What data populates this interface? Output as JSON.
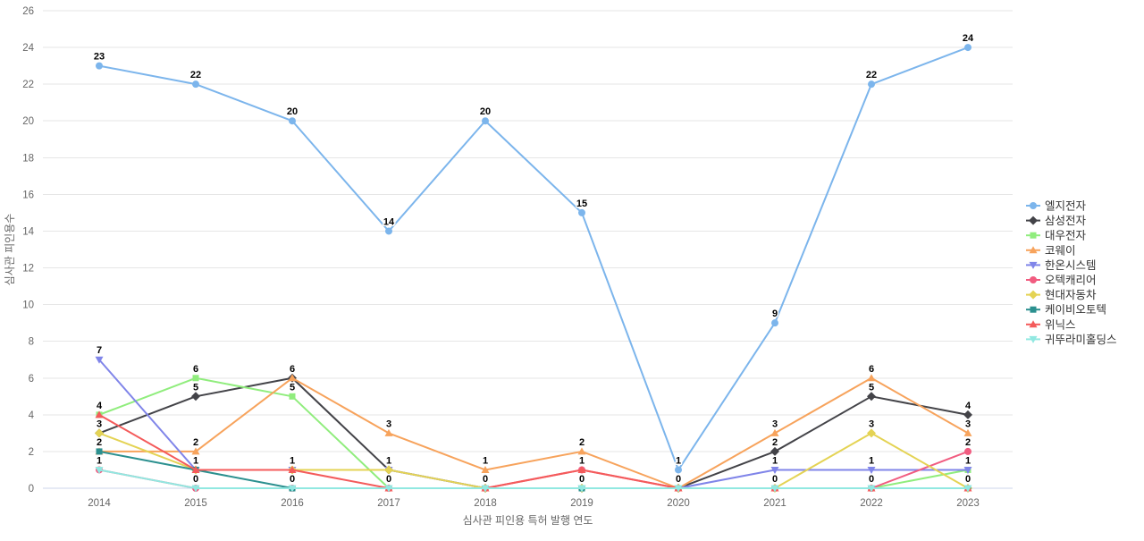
{
  "chart_data": {
    "type": "line",
    "x": [
      "2014",
      "2015",
      "2016",
      "2017",
      "2018",
      "2019",
      "2020",
      "2021",
      "2022",
      "2023"
    ],
    "xlabel": "심사관 피인용 특허 발행 연도",
    "ylabel": "심사관 피인용수",
    "ylim": [
      0,
      26
    ],
    "ytick_step": 2,
    "grid": true,
    "legend_position": "right",
    "data_labels": true,
    "series": [
      {
        "name": "엘지전자",
        "color": "#7cb5ec",
        "marker": "circle",
        "values": [
          23,
          22,
          20,
          14,
          20,
          15,
          1,
          9,
          22,
          24
        ]
      },
      {
        "name": "삼성전자",
        "color": "#434348",
        "marker": "diamond",
        "values": [
          3,
          5,
          6,
          1,
          0,
          0,
          0,
          2,
          5,
          4
        ]
      },
      {
        "name": "대우전자",
        "color": "#90ed7d",
        "marker": "square",
        "values": [
          4,
          6,
          5,
          0,
          0,
          0,
          0,
          0,
          0,
          1
        ]
      },
      {
        "name": "코웨이",
        "color": "#f7a35c",
        "marker": "triangle",
        "values": [
          2,
          2,
          6,
          3,
          1,
          2,
          0,
          3,
          6,
          3
        ]
      },
      {
        "name": "한온시스템",
        "color": "#8085e9",
        "marker": "triangle-down",
        "values": [
          7,
          1,
          1,
          1,
          0,
          0,
          0,
          1,
          1,
          1
        ]
      },
      {
        "name": "오텍캐리어",
        "color": "#f15c80",
        "marker": "circle",
        "values": [
          1,
          0,
          0,
          0,
          0,
          1,
          0,
          0,
          0,
          2
        ]
      },
      {
        "name": "현대자동차",
        "color": "#e4d354",
        "marker": "diamond",
        "values": [
          3,
          1,
          1,
          1,
          0,
          0,
          0,
          0,
          3,
          0
        ]
      },
      {
        "name": "케이비오토텍",
        "color": "#2b908f",
        "marker": "square",
        "values": [
          2,
          1,
          0,
          0,
          0,
          0,
          0,
          0,
          0,
          0
        ]
      },
      {
        "name": "위닉스",
        "color": "#f45b5b",
        "marker": "triangle",
        "values": [
          4,
          1,
          1,
          0,
          0,
          1,
          0,
          0,
          0,
          0
        ]
      },
      {
        "name": "귀뚜라미홀딩스",
        "color": "#91e8e1",
        "marker": "triangle-down",
        "values": [
          1,
          0,
          0,
          0,
          0,
          0,
          0,
          0,
          0,
          0
        ]
      }
    ],
    "styles": {
      "grid_color": "#e6e6e6",
      "axis_line_color": "#ccd6eb",
      "tick_text_color": "#666666",
      "axis_title_color": "#666666",
      "legend_text_color": "#333333",
      "data_label_color": "#000000",
      "background": "#ffffff"
    }
  }
}
